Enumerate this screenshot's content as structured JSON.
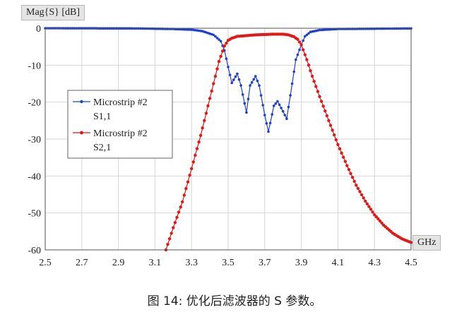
{
  "caption": "图 14: 优化后滤波器的 S 参数。",
  "chart_data": {
    "type": "line",
    "ylabel": "Mag{S} [dB]",
    "xlabel": "GHz",
    "xlim": [
      2.5,
      4.5
    ],
    "ylim": [
      -60,
      0
    ],
    "xticks": [
      "2.5",
      "2.7",
      "2.9",
      "3.1",
      "3.3",
      "3.5",
      "3.7",
      "3.9",
      "4.1",
      "4.3",
      "4.5"
    ],
    "yticks": [
      "0",
      "-10",
      "-20",
      "-30",
      "-40",
      "-50",
      "-60"
    ],
    "grid": true,
    "legend_position": "left",
    "series": [
      {
        "name": "Microstrip #2 S1,1",
        "legend_line1": "Microstrip #2",
        "legend_line2": "S1,1",
        "color": "#1f3fd1",
        "x": [
          2.5,
          3.0,
          3.2,
          3.3,
          3.36,
          3.42,
          3.46,
          3.48,
          3.5,
          3.52,
          3.55,
          3.57,
          3.6,
          3.62,
          3.65,
          3.67,
          3.7,
          3.72,
          3.75,
          3.77,
          3.8,
          3.82,
          3.85,
          3.87,
          3.9,
          3.92,
          3.95,
          4.0,
          4.1,
          4.5
        ],
        "y": [
          0,
          -0.05,
          -0.2,
          -0.4,
          -0.8,
          -1.8,
          -3.5,
          -6.0,
          -10.5,
          -14.8,
          -12.3,
          -15.5,
          -22.8,
          -15.5,
          -13.0,
          -15.5,
          -23.5,
          -28.0,
          -21.0,
          -19.8,
          -22.5,
          -24.5,
          -15.0,
          -8.5,
          -4.5,
          -2.2,
          -1.0,
          -0.5,
          -0.2,
          -0.05
        ]
      },
      {
        "name": "Microstrip #2 S2,1",
        "legend_line1": "Microstrip #2",
        "legend_line2": "S2,1",
        "color": "#e01818",
        "x": [
          3.16,
          3.2,
          3.25,
          3.3,
          3.35,
          3.4,
          3.45,
          3.48,
          3.5,
          3.52,
          3.55,
          3.6,
          3.65,
          3.7,
          3.75,
          3.8,
          3.83,
          3.86,
          3.88,
          3.9,
          3.93,
          3.96,
          4.0,
          4.05,
          4.1,
          4.15,
          4.2,
          4.25,
          4.3,
          4.35,
          4.4,
          4.45,
          4.5
        ],
        "y": [
          -60,
          -54,
          -47,
          -38,
          -29,
          -19,
          -9,
          -4.8,
          -3.3,
          -2.7,
          -2.2,
          -2.0,
          -1.8,
          -1.7,
          -1.6,
          -1.6,
          -1.8,
          -2.3,
          -3.0,
          -4.5,
          -8.5,
          -13,
          -18.5,
          -25,
          -31.5,
          -37.2,
          -42.5,
          -46.8,
          -50.5,
          -53.3,
          -55.5,
          -57,
          -58
        ]
      }
    ]
  }
}
